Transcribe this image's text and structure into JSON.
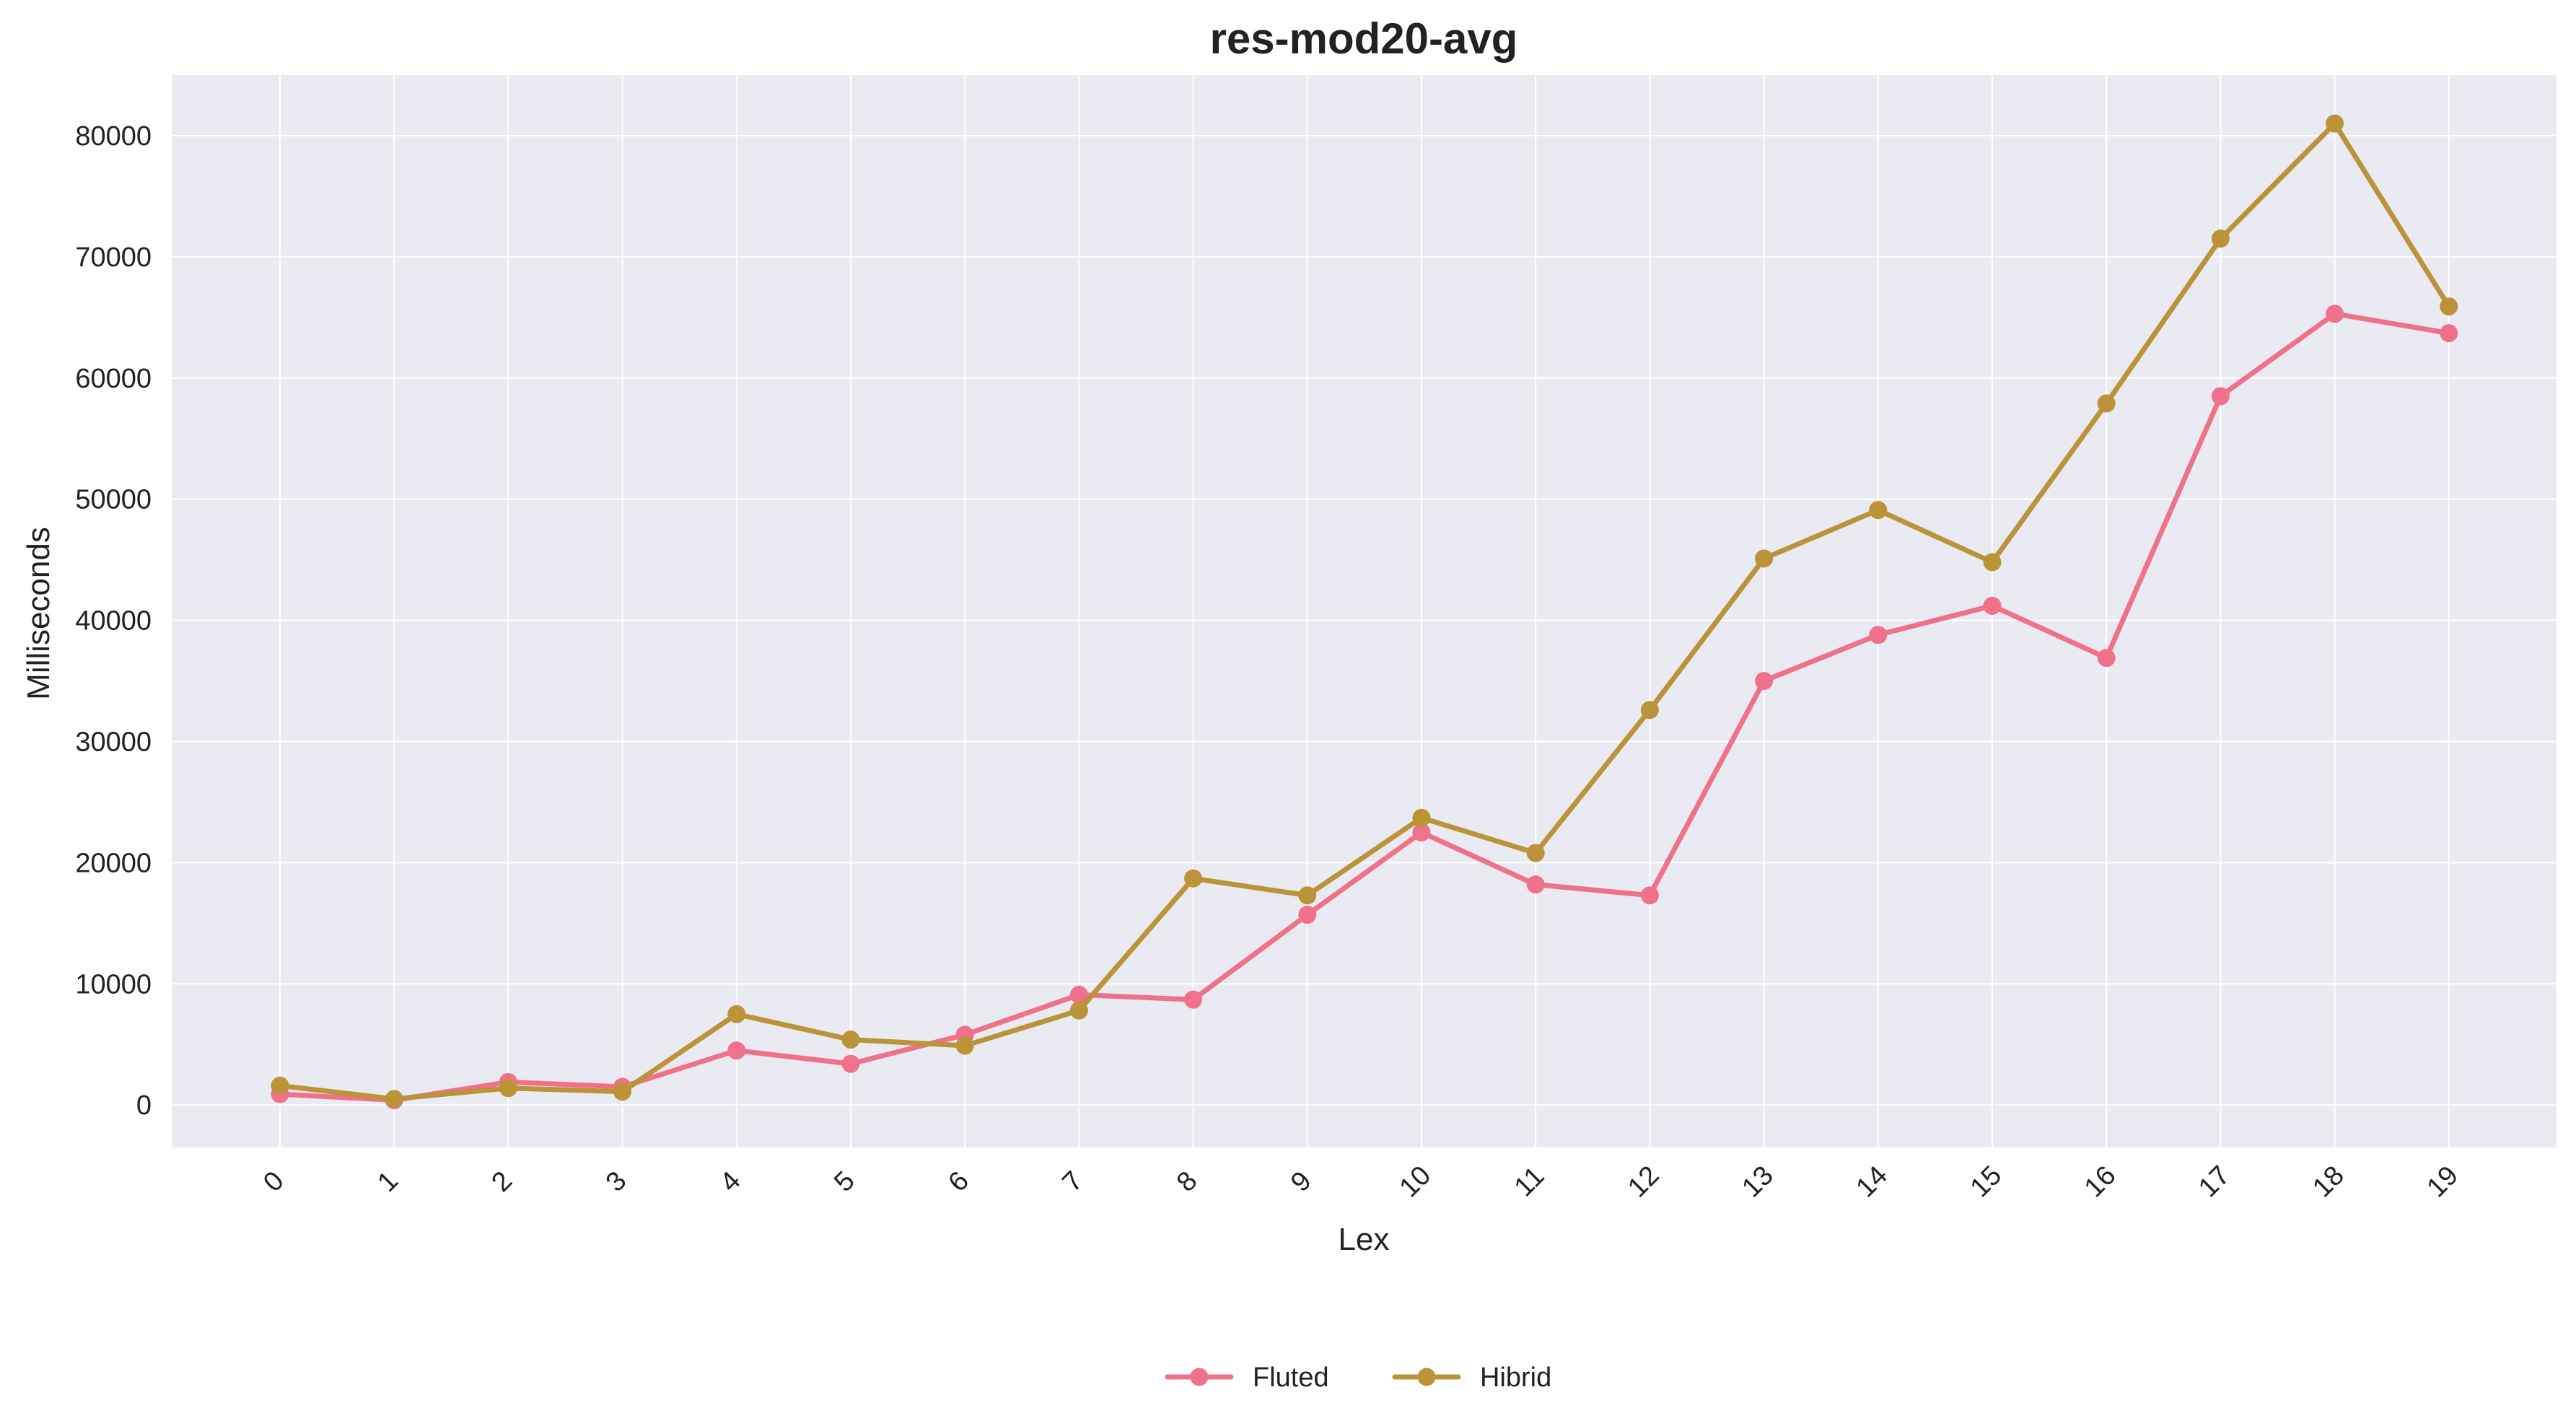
{
  "chart_data": {
    "type": "line",
    "title": "res-mod20-avg",
    "xlabel": "Lex",
    "ylabel": "Milliseconds",
    "categories": [
      "0",
      "1",
      "2",
      "3",
      "4",
      "5",
      "6",
      "7",
      "8",
      "9",
      "10",
      "11",
      "12",
      "13",
      "14",
      "15",
      "16",
      "17",
      "18",
      "19"
    ],
    "yticks": [
      0,
      10000,
      20000,
      30000,
      40000,
      50000,
      60000,
      70000,
      80000
    ],
    "ytick_labels": [
      "0",
      "10000",
      "20000",
      "30000",
      "40000",
      "50000",
      "60000",
      "70000",
      "80000"
    ],
    "ylim": [
      -3500,
      85000
    ],
    "grid": true,
    "legend_position": "bottom-center",
    "background_color": "#eaeaf2",
    "series": [
      {
        "name": "Fluted",
        "color": "#f0718a",
        "values": [
          900,
          400,
          1900,
          1500,
          4500,
          3400,
          5800,
          9100,
          8700,
          15700,
          22500,
          18200,
          17300,
          35000,
          38800,
          41200,
          36900,
          58500,
          65300,
          63700
        ]
      },
      {
        "name": "Hibrid",
        "color": "#bb9339",
        "values": [
          1600,
          500,
          1400,
          1100,
          7500,
          5400,
          4900,
          7800,
          18700,
          17300,
          23700,
          20800,
          32600,
          45100,
          49100,
          44800,
          57900,
          71500,
          81000,
          65900
        ]
      }
    ]
  }
}
